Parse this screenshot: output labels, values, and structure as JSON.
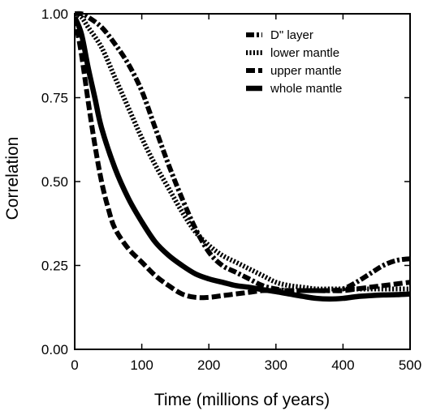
{
  "chart_data": {
    "type": "line",
    "xlabel": "Time (millions of years)",
    "ylabel": "Correlation",
    "xlim": [
      0,
      500
    ],
    "ylim": [
      0,
      1
    ],
    "xticks": [
      "0",
      "100",
      "200",
      "300",
      "400",
      "500"
    ],
    "yticks": [
      "0.00",
      "0.25",
      "0.50",
      "0.75",
      "1.00"
    ],
    "legend_position": "top-right",
    "grid": false,
    "series": [
      {
        "name": "D\" layer",
        "style": "dash-dot",
        "points": [
          [
            0,
            1.0
          ],
          [
            10,
            1.0
          ],
          [
            20,
            0.99
          ],
          [
            40,
            0.96
          ],
          [
            60,
            0.91
          ],
          [
            80,
            0.85
          ],
          [
            100,
            0.77
          ],
          [
            120,
            0.66
          ],
          [
            140,
            0.55
          ],
          [
            160,
            0.45
          ],
          [
            180,
            0.36
          ],
          [
            200,
            0.29
          ],
          [
            220,
            0.25
          ],
          [
            240,
            0.23
          ],
          [
            260,
            0.21
          ],
          [
            280,
            0.19
          ],
          [
            300,
            0.18
          ],
          [
            320,
            0.175
          ],
          [
            340,
            0.175
          ],
          [
            360,
            0.175
          ],
          [
            380,
            0.175
          ],
          [
            400,
            0.18
          ],
          [
            420,
            0.2
          ],
          [
            440,
            0.225
          ],
          [
            460,
            0.25
          ],
          [
            480,
            0.265
          ],
          [
            500,
            0.27
          ]
        ]
      },
      {
        "name": "lower mantle",
        "style": "dotted",
        "points": [
          [
            0,
            1.0
          ],
          [
            10,
            0.99
          ],
          [
            20,
            0.96
          ],
          [
            40,
            0.9
          ],
          [
            60,
            0.81
          ],
          [
            80,
            0.72
          ],
          [
            100,
            0.63
          ],
          [
            120,
            0.55
          ],
          [
            140,
            0.48
          ],
          [
            160,
            0.41
          ],
          [
            180,
            0.35
          ],
          [
            200,
            0.31
          ],
          [
            220,
            0.28
          ],
          [
            240,
            0.26
          ],
          [
            260,
            0.24
          ],
          [
            280,
            0.22
          ],
          [
            300,
            0.2
          ],
          [
            320,
            0.19
          ],
          [
            340,
            0.185
          ],
          [
            360,
            0.18
          ],
          [
            380,
            0.18
          ],
          [
            400,
            0.18
          ],
          [
            420,
            0.18
          ],
          [
            440,
            0.18
          ],
          [
            460,
            0.18
          ],
          [
            480,
            0.18
          ],
          [
            500,
            0.18
          ]
        ]
      },
      {
        "name": "upper mantle",
        "style": "dashed",
        "points": [
          [
            0,
            0.99
          ],
          [
            10,
            0.88
          ],
          [
            20,
            0.74
          ],
          [
            30,
            0.61
          ],
          [
            40,
            0.5
          ],
          [
            50,
            0.42
          ],
          [
            60,
            0.36
          ],
          [
            80,
            0.3
          ],
          [
            100,
            0.26
          ],
          [
            120,
            0.22
          ],
          [
            140,
            0.19
          ],
          [
            160,
            0.165
          ],
          [
            180,
            0.155
          ],
          [
            200,
            0.155
          ],
          [
            220,
            0.16
          ],
          [
            240,
            0.165
          ],
          [
            260,
            0.17
          ],
          [
            280,
            0.175
          ],
          [
            300,
            0.175
          ],
          [
            320,
            0.175
          ],
          [
            340,
            0.175
          ],
          [
            360,
            0.175
          ],
          [
            380,
            0.175
          ],
          [
            400,
            0.175
          ],
          [
            420,
            0.18
          ],
          [
            440,
            0.185
          ],
          [
            460,
            0.19
          ],
          [
            480,
            0.195
          ],
          [
            500,
            0.2
          ]
        ]
      },
      {
        "name": "whole mantle",
        "style": "solid",
        "points": [
          [
            0,
            0.99
          ],
          [
            10,
            0.94
          ],
          [
            20,
            0.84
          ],
          [
            30,
            0.75
          ],
          [
            40,
            0.66
          ],
          [
            60,
            0.54
          ],
          [
            80,
            0.45
          ],
          [
            100,
            0.38
          ],
          [
            120,
            0.32
          ],
          [
            140,
            0.28
          ],
          [
            160,
            0.25
          ],
          [
            180,
            0.225
          ],
          [
            200,
            0.21
          ],
          [
            220,
            0.2
          ],
          [
            240,
            0.19
          ],
          [
            260,
            0.185
          ],
          [
            280,
            0.178
          ],
          [
            300,
            0.172
          ],
          [
            320,
            0.165
          ],
          [
            340,
            0.158
          ],
          [
            360,
            0.152
          ],
          [
            380,
            0.15
          ],
          [
            400,
            0.152
          ],
          [
            420,
            0.157
          ],
          [
            440,
            0.16
          ],
          [
            460,
            0.162
          ],
          [
            480,
            0.163
          ],
          [
            500,
            0.165
          ]
        ]
      }
    ]
  }
}
